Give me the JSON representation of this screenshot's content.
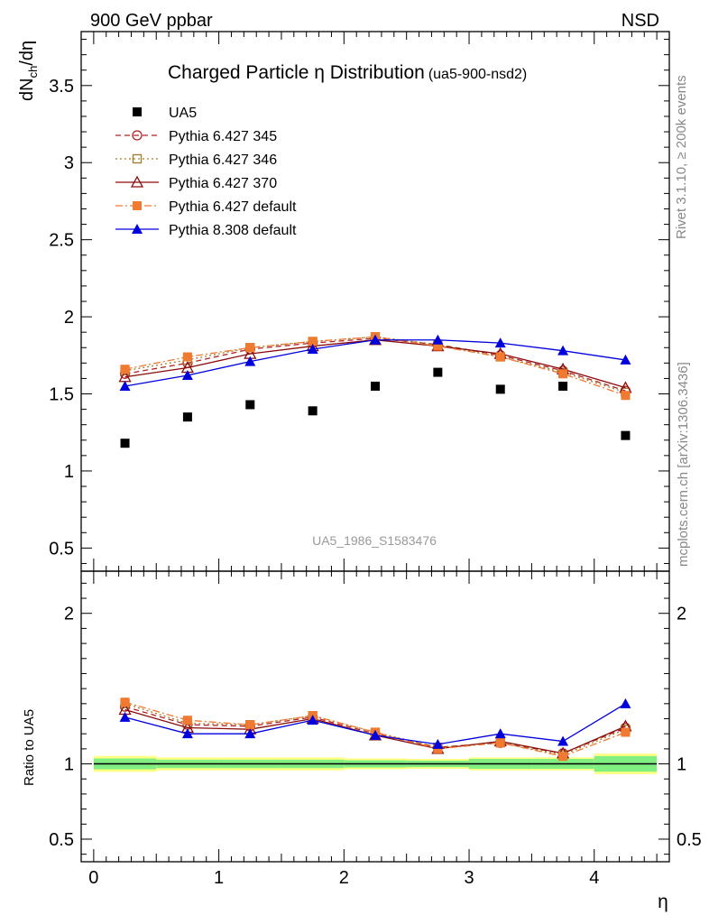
{
  "header": {
    "left": "900 GeV ppbar",
    "right": "NSD"
  },
  "side_labels": {
    "rivet": "Rivet 3.1.10, ≥ 200k events",
    "mcplots": "mcplots.cern.ch [arXiv:1306.3436]"
  },
  "title": {
    "main": "Charged Particle η Distribution",
    "sub": "(ua5-900-nsd2)"
  },
  "watermark": "UA5_1986_S1583476",
  "colors": {
    "data": "#000000",
    "py345": "#b22222",
    "py346": "#a0782a",
    "py370": "#8b0a0a",
    "pydef": "#f07a30",
    "py8": "#0000dd",
    "band_outer": "#ffff80",
    "band_inner": "#80ee80"
  },
  "chart_data": {
    "type": "scatter",
    "xlabel": "η",
    "ylabel": "dN_ch/dη",
    "xlim": [
      -0.1,
      4.6
    ],
    "ylim": [
      0.35,
      3.85
    ],
    "xticks": [
      "0",
      "1",
      "2",
      "3",
      "4"
    ],
    "yticks": [
      "0.5",
      "1",
      "1.5",
      "2",
      "2.5",
      "3",
      "3.5"
    ],
    "x": [
      0.25,
      0.75,
      1.25,
      1.75,
      2.25,
      2.75,
      3.25,
      3.75,
      4.25
    ],
    "bin_edges": [
      0,
      0.5,
      1,
      1.5,
      2,
      2.5,
      3,
      3.5,
      4,
      4.5
    ],
    "series": [
      {
        "name": "UA5",
        "key": "data",
        "marker": "square",
        "line": "none",
        "values": [
          1.18,
          1.35,
          1.43,
          1.39,
          1.55,
          1.64,
          1.53,
          1.55,
          1.23
        ]
      },
      {
        "name": "Pythia 6.427 345",
        "key": "py345",
        "marker": "circle-open",
        "line": "dashed",
        "values": [
          1.63,
          1.7,
          1.79,
          1.83,
          1.86,
          1.82,
          1.75,
          1.65,
          1.52
        ]
      },
      {
        "name": "Pythia 6.427 346",
        "key": "py346",
        "marker": "square-open",
        "line": "dotted",
        "values": [
          1.65,
          1.72,
          1.8,
          1.84,
          1.87,
          1.82,
          1.74,
          1.64,
          1.51
        ]
      },
      {
        "name": "Pythia 6.427 370",
        "key": "py370",
        "marker": "triangle-open",
        "line": "solid",
        "values": [
          1.61,
          1.67,
          1.76,
          1.81,
          1.85,
          1.81,
          1.76,
          1.66,
          1.54
        ]
      },
      {
        "name": "Pythia 6.427 default",
        "key": "pydef",
        "marker": "square",
        "line": "dashdot",
        "values": [
          1.66,
          1.74,
          1.8,
          1.84,
          1.87,
          1.81,
          1.74,
          1.63,
          1.49
        ]
      },
      {
        "name": "Pythia 8.308 default",
        "key": "py8",
        "marker": "triangle",
        "line": "solid",
        "values": [
          1.55,
          1.62,
          1.71,
          1.79,
          1.85,
          1.85,
          1.83,
          1.78,
          1.72
        ]
      }
    ],
    "ratio": {
      "ylabel": "Ratio to UA5",
      "ylim": [
        0.35,
        2.28
      ],
      "yticks": [
        "0.5",
        "1",
        "2"
      ],
      "band_outer": [
        0.053,
        0.043,
        0.043,
        0.043,
        0.036,
        0.033,
        0.043,
        0.043,
        0.068
      ],
      "band_inner": [
        0.036,
        0.028,
        0.028,
        0.028,
        0.024,
        0.022,
        0.033,
        0.033,
        0.052
      ],
      "series": [
        {
          "key": "py345",
          "values": [
            1.38,
            1.26,
            1.25,
            1.31,
            1.2,
            1.11,
            1.14,
            1.07,
            1.24
          ]
        },
        {
          "key": "py346",
          "values": [
            1.4,
            1.27,
            1.26,
            1.32,
            1.21,
            1.11,
            1.14,
            1.06,
            1.23
          ]
        },
        {
          "key": "py370",
          "values": [
            1.36,
            1.24,
            1.23,
            1.3,
            1.19,
            1.1,
            1.15,
            1.07,
            1.25
          ]
        },
        {
          "key": "pydef",
          "values": [
            1.41,
            1.29,
            1.26,
            1.32,
            1.21,
            1.1,
            1.14,
            1.05,
            1.21
          ]
        },
        {
          "key": "py8",
          "values": [
            1.31,
            1.2,
            1.2,
            1.29,
            1.19,
            1.13,
            1.2,
            1.15,
            1.4
          ]
        }
      ]
    }
  }
}
